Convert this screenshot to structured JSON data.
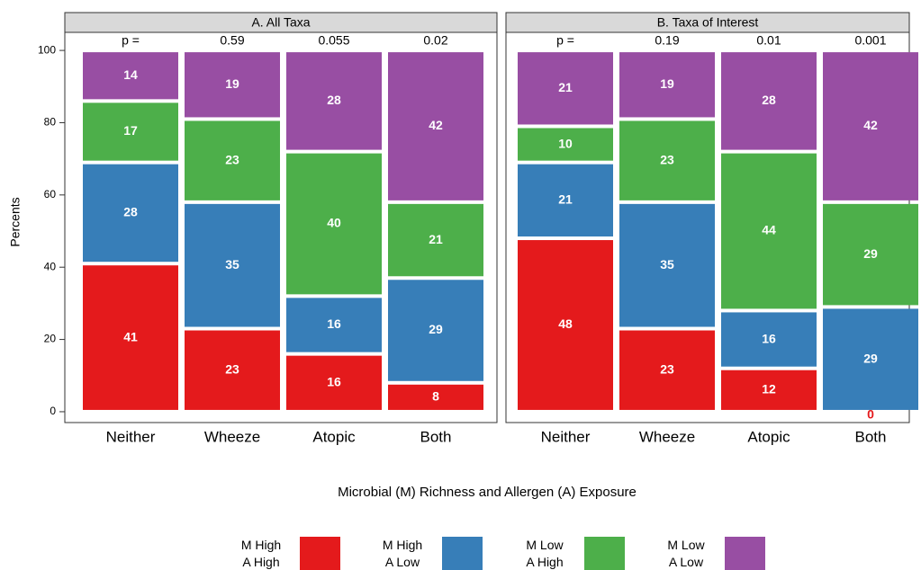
{
  "chart_data": [
    {
      "type": "bar",
      "stacked": true,
      "title": "A. All Taxa",
      "ylabel": "Percents",
      "xlabel": "Microbial (M) Richness and Allergen (A) Exposure",
      "categories": [
        "Neither",
        "Wheeze",
        "Atopic",
        "Both"
      ],
      "annotations": [
        "p =",
        "0.59",
        "0.055",
        "0.02"
      ],
      "ylim": [
        -3,
        105
      ],
      "yticks": [
        0,
        20,
        40,
        60,
        80,
        100
      ],
      "series": [
        {
          "name": "M High A High",
          "color": "#e41a1c",
          "values": [
            41,
            23,
            16,
            8
          ]
        },
        {
          "name": "M High A Low",
          "color": "#377eb8",
          "values": [
            28,
            35,
            16,
            29
          ]
        },
        {
          "name": "M Low A High",
          "color": "#4daf4a",
          "values": [
            17,
            23,
            40,
            21
          ]
        },
        {
          "name": "M Low A Low",
          "color": "#984ea3",
          "values": [
            14,
            19,
            28,
            42
          ]
        }
      ]
    },
    {
      "type": "bar",
      "stacked": true,
      "title": "B. Taxa of Interest",
      "categories": [
        "Neither",
        "Wheeze",
        "Atopic",
        "Both"
      ],
      "annotations": [
        "p =",
        "0.19",
        "0.01",
        "0.001"
      ],
      "ylim": [
        -3,
        105
      ],
      "series": [
        {
          "color": "#e41a1c",
          "values": [
            48,
            23,
            12,
            0
          ]
        },
        {
          "color": "#377eb8",
          "values": [
            21,
            35,
            16,
            29
          ]
        },
        {
          "color": "#4daf4a",
          "values": [
            10,
            23,
            44,
            29
          ]
        },
        {
          "color": "#984ea3",
          "values": [
            21,
            19,
            28,
            42
          ]
        }
      ]
    }
  ]
}
